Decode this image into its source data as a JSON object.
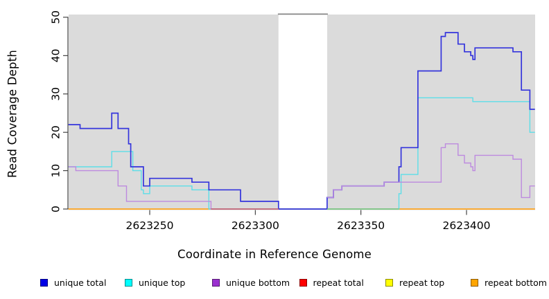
{
  "chart_data": {
    "type": "line",
    "subtype": "step-coverage",
    "title": "",
    "xlabel": "Coordinate in Reference Genome",
    "ylabel": "Read Coverage Depth",
    "xlim": [
      2623211.5,
      2623432.4
    ],
    "ylim": [
      0,
      50
    ],
    "x_ticks": [
      2623250,
      2623300,
      2623350,
      2623400
    ],
    "y_ticks": [
      0,
      10,
      20,
      30,
      40,
      50
    ],
    "grid": false,
    "plot_bg_color": "#DBDBDB",
    "no_data_gap": {
      "from": 2623311,
      "to": 2623334
    },
    "series": [
      {
        "name": "repeat total",
        "color": "#FF0000",
        "width": 1.3,
        "segments": [
          {
            "steps": [
              [
                2623211.5,
                0
              ]
            ]
          }
        ]
      },
      {
        "name": "repeat top",
        "color": "#FFFF00",
        "width": 1.3,
        "segments": [
          {
            "steps": [
              [
                2623211.5,
                0
              ]
            ]
          }
        ]
      },
      {
        "name": "repeat bottom",
        "color": "#FFA51E",
        "width": 1.6,
        "segments": [
          {
            "steps": [
              [
                2623211.5,
                0
              ]
            ]
          }
        ]
      },
      {
        "name": "unique top",
        "color": "#5CDEE8",
        "width": 1.4,
        "segments": [
          {
            "steps": [
              [
                2623211.5,
                11
              ],
              [
                2623232,
                15
              ],
              [
                2623242,
                10
              ],
              [
                2623246,
                5
              ],
              [
                2623247,
                4
              ],
              [
                2623250,
                6
              ],
              [
                2623270,
                5
              ],
              [
                2623278,
                0
              ],
              [
                2623368,
                4
              ],
              [
                2623369,
                9
              ],
              [
                2623377,
                29
              ],
              [
                2623403,
                28
              ],
              [
                2623430,
                20
              ]
            ]
          }
        ]
      },
      {
        "name": "unique total",
        "color": "#3434DC",
        "width": 1.7,
        "segments": [
          {
            "steps": [
              [
                2623211.5,
                22
              ],
              [
                2623217,
                21
              ],
              [
                2623232,
                25
              ],
              [
                2623235,
                21
              ],
              [
                2623240,
                17
              ],
              [
                2623241,
                11
              ],
              [
                2623247,
                6
              ],
              [
                2623250,
                8
              ],
              [
                2623270,
                7
              ],
              [
                2623278,
                5
              ],
              [
                2623293,
                2
              ],
              [
                2623311,
                0
              ],
              [
                2623334,
                3
              ],
              [
                2623337,
                5
              ],
              [
                2623341,
                6
              ],
              [
                2623361,
                7
              ],
              [
                2623368,
                11
              ],
              [
                2623369,
                16
              ],
              [
                2623377,
                36
              ],
              [
                2623388,
                45
              ],
              [
                2623390,
                46
              ],
              [
                2623396,
                43
              ],
              [
                2623399,
                41
              ],
              [
                2623402,
                40
              ],
              [
                2623403,
                39
              ],
              [
                2623404,
                42
              ],
              [
                2623422,
                41
              ],
              [
                2623426,
                31
              ],
              [
                2623430,
                26
              ]
            ]
          }
        ]
      },
      {
        "name": "unique bottom",
        "color": "#BD8ADF",
        "width": 1.4,
        "segments": [
          {
            "steps": [
              [
                2623211.5,
                11
              ],
              [
                2623215,
                10
              ],
              [
                2623235,
                6
              ],
              [
                2623239,
                2
              ],
              [
                2623279,
                0
              ]
            ],
            "end": 2623311
          },
          {
            "steps": [
              [
                2623334,
                3
              ],
              [
                2623337,
                5
              ],
              [
                2623341,
                6
              ],
              [
                2623361,
                7
              ],
              [
                2623388,
                16
              ],
              [
                2623390,
                17
              ],
              [
                2623396,
                14
              ],
              [
                2623399,
                12
              ],
              [
                2623402,
                11
              ],
              [
                2623403,
                10
              ],
              [
                2623404,
                14
              ],
              [
                2623422,
                13
              ],
              [
                2623426,
                3
              ],
              [
                2623430,
                6
              ]
            ]
          }
        ]
      }
    ],
    "overlap_tints": [
      {
        "from": 2623279,
        "to": 2623311,
        "value": 0,
        "color": "#C85C6C"
      },
      {
        "from": 2623334,
        "to": 2623368,
        "value": 0,
        "color": "#77C684"
      }
    ],
    "legend": {
      "items": [
        {
          "label": "unique total",
          "color": "#0000E6"
        },
        {
          "label": "unique top",
          "color": "#00FFFF"
        },
        {
          "label": "unique bottom",
          "color": "#9B30D0"
        },
        {
          "label": "repeat total",
          "color": "#FF0000"
        },
        {
          "label": "repeat top",
          "color": "#FFFF00"
        },
        {
          "label": "repeat bottom",
          "color": "#FFA500"
        }
      ]
    }
  }
}
